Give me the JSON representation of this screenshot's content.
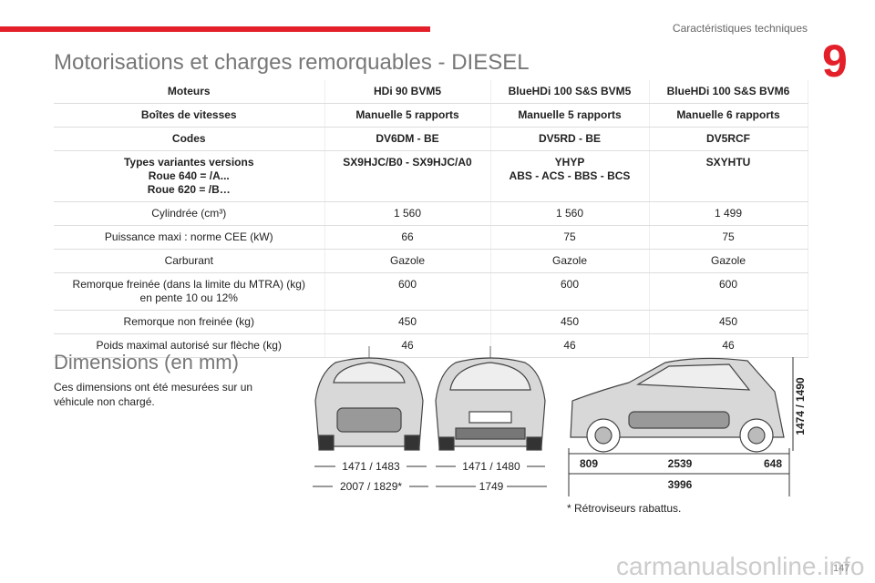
{
  "header": {
    "section": "Caractéristiques techniques",
    "chapter": "9",
    "page": "147"
  },
  "title": "Motorisations et charges remorquables - DIESEL",
  "table": {
    "head": [
      [
        "Moteurs",
        "HDi 90 BVM5",
        "BlueHDi 100 S&S BVM5",
        "BlueHDi 100 S&S BVM6"
      ],
      [
        "Boîtes de vitesses",
        "Manuelle 5 rapports",
        "Manuelle 5 rapports",
        "Manuelle 6 rapports"
      ],
      [
        "Codes",
        "DV6DM - BE",
        "DV5RD - BE",
        "DV5RCF"
      ],
      [
        [
          "Types variantes versions",
          "Roue 640 = /A...",
          "Roue 620 = /B…"
        ],
        "SX9HJC/B0 - SX9HJC/A0",
        [
          "YHYP",
          "ABS - ACS - BBS - BCS"
        ],
        "SXYHTU"
      ]
    ],
    "body": [
      [
        "Cylindrée (cm³)",
        "1 560",
        "1 560",
        "1 499"
      ],
      [
        "Puissance maxi : norme CEE (kW)",
        "66",
        "75",
        "75"
      ],
      [
        "Carburant",
        "Gazole",
        "Gazole",
        "Gazole"
      ],
      [
        [
          "Remorque freinée (dans la limite du MTRA) (kg)",
          "en pente 10 ou 12%"
        ],
        "600",
        "600",
        "600"
      ],
      [
        "Remorque non freinée (kg)",
        "450",
        "450",
        "450"
      ],
      [
        "Poids maximal autorisé sur flèche (kg)",
        "46",
        "46",
        "46"
      ]
    ]
  },
  "dimensions": {
    "title": "Dimensions (en mm)",
    "text": "Ces dimensions ont été mesurées sur un véhicule non chargé.",
    "front": {
      "track": "1471 / 1483",
      "width": "2007 / 1829*"
    },
    "rear": {
      "track": "1471 / 1480",
      "width": "1749"
    },
    "side": {
      "front_overhang": "809",
      "wheelbase": "2539",
      "rear_overhang": "648",
      "length": "3996",
      "height": "1474 / 1490"
    },
    "note": "* Rétroviseurs rabattus."
  },
  "watermark": "carmanualsonline.info"
}
